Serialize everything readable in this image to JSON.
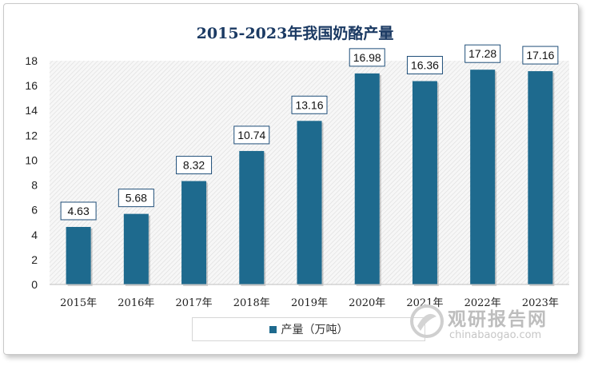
{
  "chart_data": {
    "type": "bar",
    "title": "2015-2023年我国奶酪产量",
    "categories": [
      "2015年",
      "2016年",
      "2017年",
      "2018年",
      "2019年",
      "2020年",
      "2021年",
      "2022年",
      "2023年"
    ],
    "series": [
      {
        "name": "产量（万吨）",
        "values": [
          4.63,
          5.68,
          8.32,
          10.74,
          13.16,
          16.98,
          16.36,
          17.28,
          17.16
        ]
      }
    ],
    "data_labels": [
      "4.63",
      "5.68",
      "8.32",
      "10.74",
      "13.16",
      "16.98",
      "16.36",
      "17.28",
      "17.16"
    ],
    "yticks": [
      "0",
      "2",
      "4",
      "6",
      "8",
      "10",
      "12",
      "14",
      "16",
      "18"
    ],
    "ylim": [
      0,
      18
    ],
    "grid": false,
    "legend_position": "bottom",
    "bar_color": "#1e6a8e",
    "title_color": "#1b3a63"
  },
  "watermark": {
    "cn_text": "观研报告网",
    "url": "chinabaogao.com"
  }
}
